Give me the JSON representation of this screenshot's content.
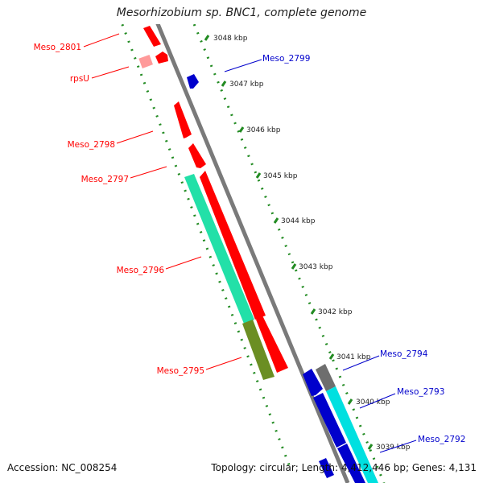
{
  "title": "Mesorhizobium sp. BNC1, complete genome",
  "footer": {
    "accession": "Accession: NC_008254",
    "topology": "Topology: circular; Length: 4,412,446 bp; Genes: 4,131"
  },
  "ticks": [
    {
      "kbp": 3048,
      "label": "3048 kbp"
    },
    {
      "kbp": 3047,
      "label": "3047 kbp"
    },
    {
      "kbp": 3046,
      "label": "3046 kbp"
    },
    {
      "kbp": 3045,
      "label": "3045 kbp"
    },
    {
      "kbp": 3044,
      "label": "3044 kbp"
    },
    {
      "kbp": 3043,
      "label": "3043 kbp"
    },
    {
      "kbp": 3042,
      "label": "3042 kbp"
    },
    {
      "kbp": 3041,
      "label": "3041 kbp"
    },
    {
      "kbp": 3040,
      "label": "3040 kbp"
    },
    {
      "kbp": 3039,
      "label": "3039 kbp"
    }
  ],
  "genes": [
    {
      "name": "Meso_2801",
      "strand": "reverse",
      "color": "#ff0000"
    },
    {
      "name": "rpsU",
      "strand": "reverse",
      "color": "#ff0000"
    },
    {
      "name": "Meso_2799",
      "strand": "forward",
      "color": "#0000cc"
    },
    {
      "name": "Meso_2798",
      "strand": "reverse",
      "color": "#ff0000"
    },
    {
      "name": "Meso_2797",
      "strand": "reverse",
      "color": "#ff0000"
    },
    {
      "name": "Meso_2796",
      "strand": "reverse",
      "color": "#ff0000"
    },
    {
      "name": "Meso_2795",
      "strand": "reverse",
      "color": "#ff0000"
    },
    {
      "name": "Meso_2794",
      "strand": "forward",
      "color": "#0000cc"
    },
    {
      "name": "Meso_2793",
      "strand": "forward",
      "color": "#0000cc"
    },
    {
      "name": "Meso_2792",
      "strand": "forward",
      "color": "#0000cc"
    }
  ],
  "colors": {
    "backbone": "#7a7a7a",
    "tick_ring": "#228b22",
    "reverse_gene": "#ff0000",
    "reverse_gene_light": "#ff9a9a",
    "forward_gene": "#0000cc",
    "feature_teal": "#22e0a8",
    "feature_olive": "#6b8e23",
    "feature_cyan": "#00e0e0",
    "feature_gray": "#6e6e6e",
    "tick_label": "#222222"
  }
}
